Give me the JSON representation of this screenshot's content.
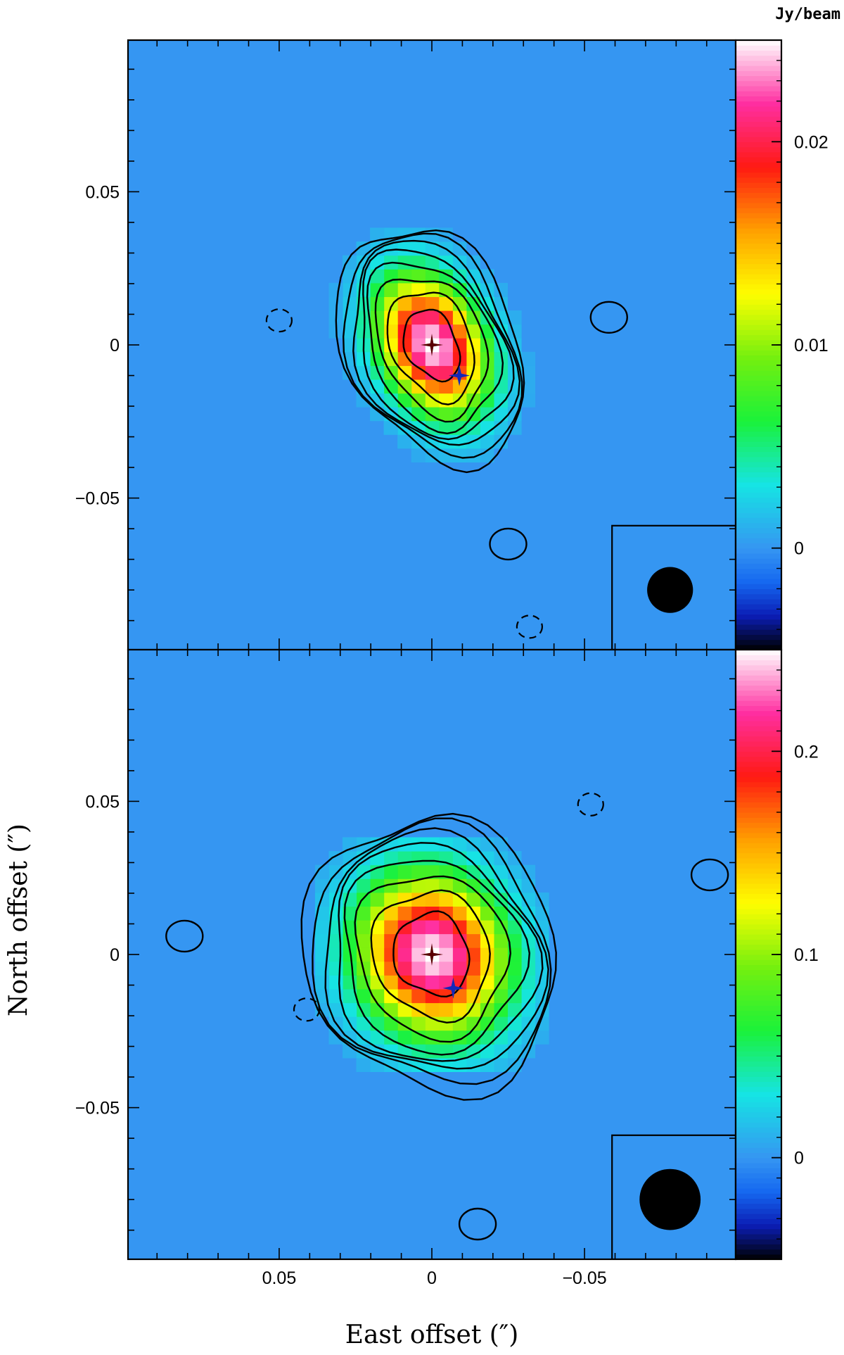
{
  "chart_data": [
    {
      "type": "heatmap",
      "panel": "top",
      "colorbar_unit": "Jy/beam",
      "colorbar_range": [
        -0.005,
        0.025
      ],
      "colorbar_ticks": [
        {
          "value": 0,
          "label": "0"
        },
        {
          "value": 0.01,
          "label": "0.01"
        },
        {
          "value": 0.02,
          "label": "0.02"
        }
      ],
      "peak_value": 0.024,
      "peak_position": [
        0,
        0
      ],
      "source_sigma": [
        0.011,
        0.016
      ],
      "contour_fractions": [
        0.04,
        0.06,
        0.09,
        0.13,
        0.2,
        0.32,
        0.5,
        0.75
      ],
      "negative_contour_positions": [
        [
          0.05,
          0.008
        ],
        [
          -0.032,
          -0.092
        ]
      ],
      "small_positive_blobs": [
        [
          -0.025,
          -0.065
        ],
        [
          -0.058,
          0.009
        ]
      ],
      "reference_marker": [
        0,
        0
      ],
      "secondary_marker": [
        -0.009,
        -0.01
      ],
      "beam": {
        "diameter": 0.015,
        "position": [
          -0.078,
          -0.08
        ]
      }
    },
    {
      "type": "heatmap",
      "panel": "bottom",
      "colorbar_range": [
        -0.05,
        0.25
      ],
      "colorbar_ticks": [
        {
          "value": 0,
          "label": "0"
        },
        {
          "value": 0.1,
          "label": "0.1"
        },
        {
          "value": 0.2,
          "label": "0.2"
        }
      ],
      "peak_value": 0.24,
      "peak_position": [
        0,
        0
      ],
      "source_sigma": [
        0.016,
        0.018
      ],
      "contour_fractions": [
        0.04,
        0.06,
        0.09,
        0.13,
        0.2,
        0.32,
        0.5,
        0.75
      ],
      "negative_contour_positions": [
        [
          -0.052,
          0.049
        ],
        [
          0.041,
          -0.018
        ]
      ],
      "small_positive_blobs": [
        [
          0.081,
          0.006
        ],
        [
          -0.091,
          0.026
        ],
        [
          -0.015,
          -0.088
        ]
      ],
      "reference_marker": [
        0,
        0
      ],
      "secondary_marker": [
        -0.007,
        -0.011
      ],
      "beam": {
        "diameter": 0.02,
        "position": [
          -0.078,
          -0.08
        ]
      }
    }
  ],
  "axes": {
    "xlabel": "East offset (″)",
    "ylabel": "North offset (″)",
    "xlim": [
      0.0995,
      -0.0995
    ],
    "ylim": [
      -0.0995,
      0.0995
    ],
    "x_ticks": [
      {
        "value": 0.05,
        "label": "0.05"
      },
      {
        "value": 0,
        "label": "0"
      },
      {
        "value": -0.05,
        "label": "−0.05"
      }
    ],
    "y_ticks": [
      {
        "value": 0.05,
        "label": "0.05"
      },
      {
        "value": 0,
        "label": "0"
      },
      {
        "value": -0.05,
        "label": "−0.05"
      }
    ]
  },
  "colors": {
    "background": "#3596f2",
    "colormap": [
      "#000000",
      "#0b1db4",
      "#1568f0",
      "#3596f2",
      "#16e4e4",
      "#1af23a",
      "#74f00f",
      "#fefe00",
      "#ffa000",
      "#ff1a12",
      "#ff2ea0",
      "#ffffff"
    ],
    "secondary_marker": "#1428b8",
    "reference_marker": "#5a0000"
  }
}
